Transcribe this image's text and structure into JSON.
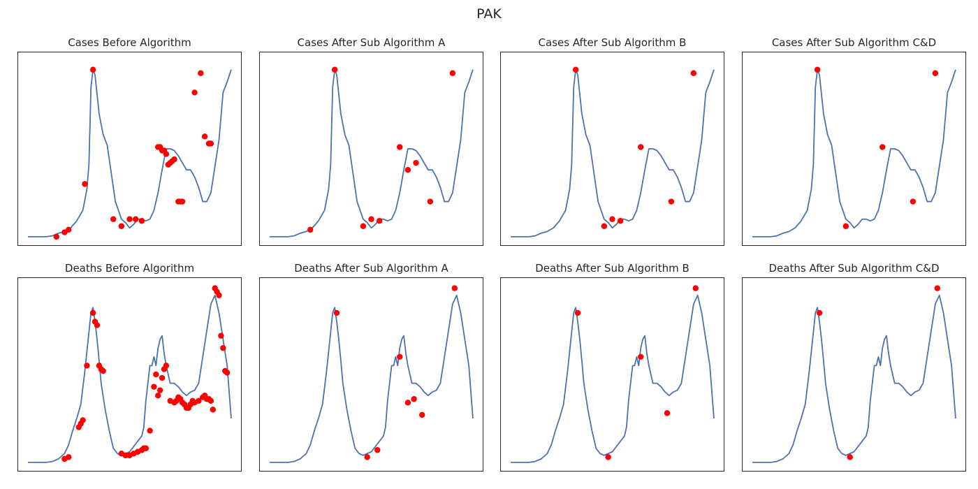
{
  "figure": {
    "title": "PAK"
  },
  "chart_data": [
    {
      "type": "line",
      "title": "Cases Before Algorithm",
      "series_color": "#4c72b0",
      "marker_color": "#ff0000",
      "xlim": [
        0,
        100
      ],
      "ylim": [
        0,
        100
      ],
      "x": [
        0,
        3,
        6,
        9,
        12,
        15,
        18,
        21,
        24,
        27,
        29,
        30,
        31,
        32,
        33,
        35,
        37,
        39,
        41,
        43,
        46,
        48,
        50,
        52,
        54,
        56,
        58,
        60,
        62,
        64,
        66,
        68,
        70,
        72,
        74,
        76,
        78,
        80,
        82,
        84,
        86,
        88,
        90,
        92,
        94,
        96,
        98,
        100
      ],
      "y": [
        0,
        0,
        0,
        0,
        0.5,
        2,
        3,
        5,
        9,
        15,
        27,
        41,
        85,
        95,
        92,
        70,
        58,
        52,
        36,
        20,
        10,
        8,
        5,
        7,
        10,
        10,
        9,
        10,
        15,
        25,
        38,
        50,
        50,
        49,
        46,
        42,
        38,
        38,
        34,
        28,
        20,
        20,
        25,
        40,
        55,
        82,
        88,
        95
      ],
      "highlight_points": [
        [
          14,
          0
        ],
        [
          18,
          2.5
        ],
        [
          20,
          4
        ],
        [
          28,
          30
        ],
        [
          32,
          95
        ],
        [
          42,
          10
        ],
        [
          46,
          6
        ],
        [
          50,
          10
        ],
        [
          53,
          10
        ],
        [
          56,
          9
        ],
        [
          64,
          51
        ],
        [
          65,
          51
        ],
        [
          66,
          49
        ],
        [
          67,
          49
        ],
        [
          68,
          47
        ],
        [
          69,
          41
        ],
        [
          70,
          42
        ],
        [
          71,
          43
        ],
        [
          72,
          44
        ],
        [
          74,
          20
        ],
        [
          75,
          20
        ],
        [
          76,
          20
        ],
        [
          82,
          82
        ],
        [
          85,
          93
        ],
        [
          87,
          57
        ],
        [
          89,
          53
        ],
        [
          90,
          53
        ]
      ]
    },
    {
      "type": "line",
      "title": "Cases After Sub Algorithm A",
      "series_color": "#4c72b0",
      "marker_color": "#ff0000",
      "xlim": [
        0,
        100
      ],
      "ylim": [
        0,
        100
      ],
      "x": [
        0,
        3,
        6,
        9,
        12,
        15,
        18,
        21,
        24,
        27,
        29,
        30,
        31,
        32,
        33,
        35,
        37,
        39,
        41,
        43,
        46,
        48,
        50,
        52,
        54,
        56,
        58,
        60,
        62,
        64,
        66,
        68,
        70,
        72,
        74,
        76,
        78,
        80,
        82,
        84,
        86,
        88,
        90,
        92,
        94,
        96,
        98,
        100
      ],
      "y": [
        0,
        0,
        0,
        0,
        0.5,
        2,
        3,
        5,
        9,
        15,
        27,
        41,
        85,
        95,
        92,
        70,
        58,
        52,
        36,
        20,
        10,
        8,
        5,
        7,
        10,
        10,
        9,
        10,
        15,
        25,
        38,
        50,
        50,
        49,
        46,
        42,
        38,
        38,
        34,
        28,
        20,
        20,
        25,
        40,
        55,
        82,
        88,
        95
      ],
      "highlight_points": [
        [
          20,
          4
        ],
        [
          32,
          95
        ],
        [
          46,
          6
        ],
        [
          50,
          10
        ],
        [
          54,
          9
        ],
        [
          64,
          51
        ],
        [
          68,
          38
        ],
        [
          72,
          42
        ],
        [
          79,
          20
        ],
        [
          90,
          93
        ]
      ]
    },
    {
      "type": "line",
      "title": "Cases After Sub Algorithm B",
      "series_color": "#4c72b0",
      "marker_color": "#ff0000",
      "xlim": [
        0,
        100
      ],
      "ylim": [
        0,
        100
      ],
      "x": [
        0,
        3,
        6,
        9,
        12,
        15,
        18,
        21,
        24,
        27,
        29,
        30,
        31,
        32,
        33,
        35,
        37,
        39,
        41,
        43,
        46,
        48,
        50,
        52,
        54,
        56,
        58,
        60,
        62,
        64,
        66,
        68,
        70,
        72,
        74,
        76,
        78,
        80,
        82,
        84,
        86,
        88,
        90,
        92,
        94,
        96,
        98,
        100
      ],
      "y": [
        0,
        0,
        0,
        0,
        0.5,
        2,
        3,
        5,
        9,
        15,
        27,
        41,
        85,
        95,
        92,
        70,
        58,
        52,
        36,
        20,
        10,
        8,
        5,
        7,
        10,
        10,
        9,
        10,
        15,
        25,
        38,
        50,
        50,
        49,
        46,
        42,
        38,
        38,
        34,
        28,
        20,
        20,
        25,
        40,
        55,
        82,
        88,
        95
      ],
      "highlight_points": [
        [
          32,
          95
        ],
        [
          46,
          6
        ],
        [
          50,
          10
        ],
        [
          54,
          9
        ],
        [
          64,
          51
        ],
        [
          79,
          20
        ],
        [
          90,
          93
        ]
      ]
    },
    {
      "type": "line",
      "title": "Cases After Sub Algorithm C&D",
      "series_color": "#4c72b0",
      "marker_color": "#ff0000",
      "xlim": [
        0,
        100
      ],
      "ylim": [
        0,
        100
      ],
      "x": [
        0,
        3,
        6,
        9,
        12,
        15,
        18,
        21,
        24,
        27,
        29,
        30,
        31,
        32,
        33,
        35,
        37,
        39,
        41,
        43,
        46,
        48,
        50,
        52,
        54,
        56,
        58,
        60,
        62,
        64,
        66,
        68,
        70,
        72,
        74,
        76,
        78,
        80,
        82,
        84,
        86,
        88,
        90,
        92,
        94,
        96,
        98,
        100
      ],
      "y": [
        0,
        0,
        0,
        0,
        0.5,
        2,
        3,
        5,
        9,
        15,
        27,
        41,
        85,
        95,
        92,
        70,
        58,
        52,
        36,
        20,
        10,
        8,
        5,
        7,
        10,
        10,
        9,
        10,
        15,
        25,
        38,
        50,
        50,
        49,
        46,
        42,
        38,
        38,
        34,
        28,
        20,
        20,
        25,
        40,
        55,
        82,
        88,
        95
      ],
      "highlight_points": [
        [
          32,
          95
        ],
        [
          46,
          6
        ],
        [
          64,
          51
        ],
        [
          79,
          20
        ],
        [
          90,
          93
        ]
      ]
    },
    {
      "type": "line",
      "title": "Deaths Before Algorithm",
      "series_color": "#4c72b0",
      "marker_color": "#ff0000",
      "xlim": [
        0,
        100
      ],
      "ylim": [
        0,
        100
      ],
      "x": [
        0,
        3,
        6,
        9,
        12,
        15,
        18,
        20,
        22,
        24,
        26,
        28,
        30,
        31,
        32,
        33,
        34,
        35,
        36,
        38,
        40,
        42,
        44,
        46,
        48,
        50,
        52,
        54,
        56,
        57,
        58,
        59,
        60,
        61,
        62,
        63,
        64,
        65,
        66,
        67,
        68,
        70,
        72,
        74,
        76,
        78,
        80,
        82,
        84,
        86,
        88,
        90,
        92,
        94,
        96,
        98,
        100
      ],
      "y": [
        0,
        0,
        0,
        0,
        0.5,
        2,
        5,
        10,
        18,
        25,
        33,
        52,
        74,
        85,
        88,
        80,
        70,
        58,
        45,
        30,
        18,
        8,
        5,
        4,
        5,
        6,
        9,
        12,
        15,
        20,
        35,
        45,
        55,
        55,
        60,
        55,
        65,
        70,
        72,
        62,
        55,
        45,
        45,
        43,
        40,
        38,
        40,
        41,
        45,
        60,
        75,
        90,
        95,
        85,
        70,
        55,
        25
      ],
      "highlight_points": [
        [
          18,
          2
        ],
        [
          20,
          3
        ],
        [
          25,
          20
        ],
        [
          26,
          22
        ],
        [
          27,
          24
        ],
        [
          29,
          55
        ],
        [
          32,
          85
        ],
        [
          33,
          80
        ],
        [
          34,
          78
        ],
        [
          35,
          55
        ],
        [
          36,
          53
        ],
        [
          37,
          52
        ],
        [
          46,
          5
        ],
        [
          48,
          4
        ],
        [
          50,
          4
        ],
        [
          52,
          5
        ],
        [
          54,
          6
        ],
        [
          56,
          7
        ],
        [
          57,
          8
        ],
        [
          58,
          8
        ],
        [
          60,
          18
        ],
        [
          62,
          43
        ],
        [
          63,
          50
        ],
        [
          64,
          38
        ],
        [
          65,
          41
        ],
        [
          66,
          48
        ],
        [
          67,
          53
        ],
        [
          68,
          55
        ],
        [
          70,
          35
        ],
        [
          72,
          34
        ],
        [
          73,
          35
        ],
        [
          74,
          37
        ],
        [
          75,
          36
        ],
        [
          76,
          34
        ],
        [
          77,
          33
        ],
        [
          78,
          31
        ],
        [
          79,
          31
        ],
        [
          80,
          33
        ],
        [
          81,
          35
        ],
        [
          82,
          34
        ],
        [
          84,
          35
        ],
        [
          86,
          37
        ],
        [
          87,
          38
        ],
        [
          88,
          36
        ],
        [
          89,
          36
        ],
        [
          90,
          35
        ],
        [
          91,
          30
        ],
        [
          92,
          99
        ],
        [
          93,
          97
        ],
        [
          94,
          95
        ],
        [
          95,
          72
        ],
        [
          96,
          65
        ],
        [
          97,
          52
        ],
        [
          98,
          51
        ]
      ]
    },
    {
      "type": "line",
      "title": "Deaths After Sub Algorithm A",
      "series_color": "#4c72b0",
      "marker_color": "#ff0000",
      "xlim": [
        0,
        100
      ],
      "ylim": [
        0,
        100
      ],
      "x": [
        0,
        3,
        6,
        9,
        12,
        15,
        18,
        20,
        22,
        24,
        26,
        28,
        30,
        31,
        32,
        33,
        34,
        35,
        36,
        38,
        40,
        42,
        44,
        46,
        48,
        50,
        52,
        54,
        56,
        57,
        58,
        59,
        60,
        61,
        62,
        63,
        64,
        65,
        66,
        67,
        68,
        70,
        72,
        74,
        76,
        78,
        80,
        82,
        84,
        86,
        88,
        90,
        92,
        94,
        96,
        98,
        100
      ],
      "y": [
        0,
        0,
        0,
        0,
        0.5,
        2,
        5,
        10,
        18,
        25,
        33,
        52,
        74,
        85,
        88,
        80,
        70,
        58,
        45,
        30,
        18,
        8,
        5,
        4,
        5,
        6,
        9,
        12,
        15,
        20,
        35,
        45,
        55,
        55,
        60,
        55,
        65,
        70,
        72,
        62,
        55,
        45,
        45,
        43,
        40,
        38,
        40,
        41,
        45,
        60,
        75,
        90,
        95,
        85,
        70,
        55,
        25
      ],
      "highlight_points": [
        [
          33,
          85
        ],
        [
          48,
          3
        ],
        [
          53,
          7
        ],
        [
          64,
          60
        ],
        [
          68,
          34
        ],
        [
          71,
          36
        ],
        [
          75,
          27
        ],
        [
          91,
          99
        ]
      ]
    },
    {
      "type": "line",
      "title": "Deaths After Sub Algorithm B",
      "series_color": "#4c72b0",
      "marker_color": "#ff0000",
      "xlim": [
        0,
        100
      ],
      "ylim": [
        0,
        100
      ],
      "x": [
        0,
        3,
        6,
        9,
        12,
        15,
        18,
        20,
        22,
        24,
        26,
        28,
        30,
        31,
        32,
        33,
        34,
        35,
        36,
        38,
        40,
        42,
        44,
        46,
        48,
        50,
        52,
        54,
        56,
        57,
        58,
        59,
        60,
        61,
        62,
        63,
        64,
        65,
        66,
        67,
        68,
        70,
        72,
        74,
        76,
        78,
        80,
        82,
        84,
        86,
        88,
        90,
        92,
        94,
        96,
        98,
        100
      ],
      "y": [
        0,
        0,
        0,
        0,
        0.5,
        2,
        5,
        10,
        18,
        25,
        33,
        52,
        74,
        85,
        88,
        80,
        70,
        58,
        45,
        30,
        18,
        8,
        5,
        4,
        5,
        6,
        9,
        12,
        15,
        20,
        35,
        45,
        55,
        55,
        60,
        55,
        65,
        70,
        72,
        62,
        55,
        45,
        45,
        43,
        40,
        38,
        40,
        41,
        45,
        60,
        75,
        90,
        95,
        85,
        70,
        55,
        25
      ],
      "highlight_points": [
        [
          33,
          85
        ],
        [
          48,
          3
        ],
        [
          64,
          60
        ],
        [
          77,
          28
        ],
        [
          91,
          99
        ]
      ]
    },
    {
      "type": "line",
      "title": "Deaths After Sub Algorithm C&D",
      "series_color": "#4c72b0",
      "marker_color": "#ff0000",
      "xlim": [
        0,
        100
      ],
      "ylim": [
        0,
        100
      ],
      "x": [
        0,
        3,
        6,
        9,
        12,
        15,
        18,
        20,
        22,
        24,
        26,
        28,
        30,
        31,
        32,
        33,
        34,
        35,
        36,
        38,
        40,
        42,
        44,
        46,
        48,
        50,
        52,
        54,
        56,
        57,
        58,
        59,
        60,
        61,
        62,
        63,
        64,
        65,
        66,
        67,
        68,
        70,
        72,
        74,
        76,
        78,
        80,
        82,
        84,
        86,
        88,
        90,
        92,
        94,
        96,
        98,
        100
      ],
      "y": [
        0,
        0,
        0,
        0,
        0.5,
        2,
        5,
        10,
        18,
        25,
        33,
        52,
        74,
        85,
        88,
        80,
        70,
        58,
        45,
        30,
        18,
        8,
        5,
        4,
        5,
        6,
        9,
        12,
        15,
        20,
        35,
        45,
        55,
        55,
        60,
        55,
        65,
        70,
        72,
        62,
        55,
        45,
        45,
        43,
        40,
        38,
        40,
        41,
        45,
        60,
        75,
        90,
        95,
        85,
        70,
        55,
        25
      ],
      "highlight_points": [
        [
          33,
          85
        ],
        [
          48,
          3
        ],
        [
          91,
          99
        ]
      ]
    }
  ]
}
